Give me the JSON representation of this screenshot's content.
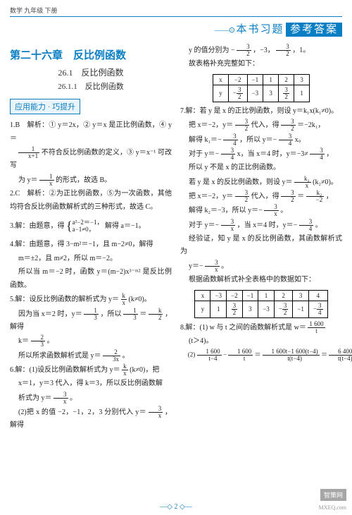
{
  "header": {
    "subject": "数学 九年级 下册"
  },
  "banner": {
    "deco": "——⊙",
    "t1": "本书习题",
    "t2": "参考答案"
  },
  "chapter": {
    "title": "第二十六章　反比例函数",
    "s": "26.1　反比例函数",
    "ss": "26.1.1　反比例函数"
  },
  "box": {
    "label": "应用能力 · 巧提升"
  },
  "L": {
    "q1a": "1.B　解析：① y＝2x，② y＝x 是正比例函数，④ y＝",
    "q1b": " 不符合反比例函数的定义，③ y＝x⁻¹ 可改写",
    "q1c": "为 y＝",
    "q1c2": " 的形式，故选 B。",
    "q2": "2.C　解析：②为正比例函数，⑤为一次函数，其他均符合反比例函数解析式的三种形式，故选 C。",
    "q3a": "3.解：由题意，得",
    "q3b": " 解得 a＝−1。",
    "br_top": "a²−2＝−1，",
    "br_bot": "a−1≠0，",
    "q4a": "4.解：由题意，得 3−m²＝−1，且 m−2≠0，解得",
    "q4b": "m＝±2，且 m≠2，所以 m＝−2。",
    "q4c": "所以当 m＝−2 时，函数 y＝(m−2)x³⁻ᵐ² 是反比例函数。",
    "q5a": "5.解：设反比例函数的解析式为 y＝",
    "q5a2": "(k≠0)。",
    "q5b": "因为当 x＝2 时，y＝",
    "q5b2": "，所以 ",
    "q5b3": "＝",
    "q5b4": "，解得",
    "q5c": "k＝",
    "q5c2": "。",
    "q5d": "所以所求函数解析式是 y＝",
    "q5d2": "。",
    "q6a": "6.解：(1)设反比例函数解析式为 y＝",
    "q6a2": "(k≠0)，把",
    "q6b": "x＝1，y＝3 代入，得 k＝3，所以反比例函数解",
    "q6c": "析式为 y＝",
    "q6c2": "。",
    "q6d": "(2)把 x 的值 −2，−1，2，3 分别代入 y＝",
    "q6d2": "，解得"
  },
  "R": {
    "r1": "y 的值分别为 −",
    "r1b": "，−3，",
    "r1c": "，1。",
    "r2": "故表格补充完整如下：",
    "t1": {
      "h": [
        "x",
        "−2",
        "−1",
        "1",
        "2",
        "3"
      ],
      "r": [
        "y",
        "−",
        "−3",
        "3",
        "",
        "1"
      ],
      "f1": "3",
      "f1d": "2",
      "f2": "3",
      "f2d": "2"
    },
    "q7a": "7.解：若 y 是 x 的正比例函数，则设 y＝k₁x(k₁≠0)。",
    "q7b": "把 x＝−2，y＝",
    "q7b2": " 代入，得 ",
    "q7b3": "＝−2k₁，",
    "q7c": "解得 k₁＝−",
    "q7c2": "，所以 y＝−",
    "q7c3": "x。",
    "q7d": "对于 y＝−",
    "q7d2": "x，当 x＝4 时，y＝−3≠",
    "q7d3": "，",
    "q7e": "所以 y 不是 x 的正比例函数。",
    "q7f": "若 y 是 x 的反比例函数，则设 y＝",
    "q7f2": "(k₂≠0)。",
    "q7g": "把 x＝−2，y＝",
    "q7g2": " 代入，得 ",
    "q7g3": "＝",
    "q7g4": "，",
    "q7h": "解得 k₂＝−3，所以 y＝−",
    "q7h2": "。",
    "q7i": "对于 y＝−",
    "q7i2": "，当 x＝4 时，y＝−",
    "q7i3": "。",
    "q7j": "经验证，知 y 是 x 的反比例函数，其函数解析式为",
    "q7k": "y＝−",
    "q7k2": "。",
    "q7l": "根据函数解析式补全表格中的数据如下：",
    "t2": {
      "h": [
        "x",
        "−3",
        "−2",
        "−1",
        "1",
        "2",
        "3",
        "4"
      ],
      "r": [
        "y",
        "1",
        "",
        "3",
        "−3",
        "−",
        "−1",
        "−"
      ],
      "f1": "3",
      "f1d": "2",
      "f2": "3",
      "f2d": "2",
      "f3": "3",
      "f3d": "4"
    },
    "q8a": "8.解：(1) w 与 t 之间的函数解析式是 w＝",
    "q8b": "(t＞4)。",
    "q8c": "(2) ",
    "q8c2": "−",
    "q8c3": "＝",
    "q8c4": "＝",
    "q8c5": "。"
  },
  "footer": {
    "pg": "2"
  },
  "watermark": {
    "a": "智策网",
    "b": "MXEQ.com"
  }
}
